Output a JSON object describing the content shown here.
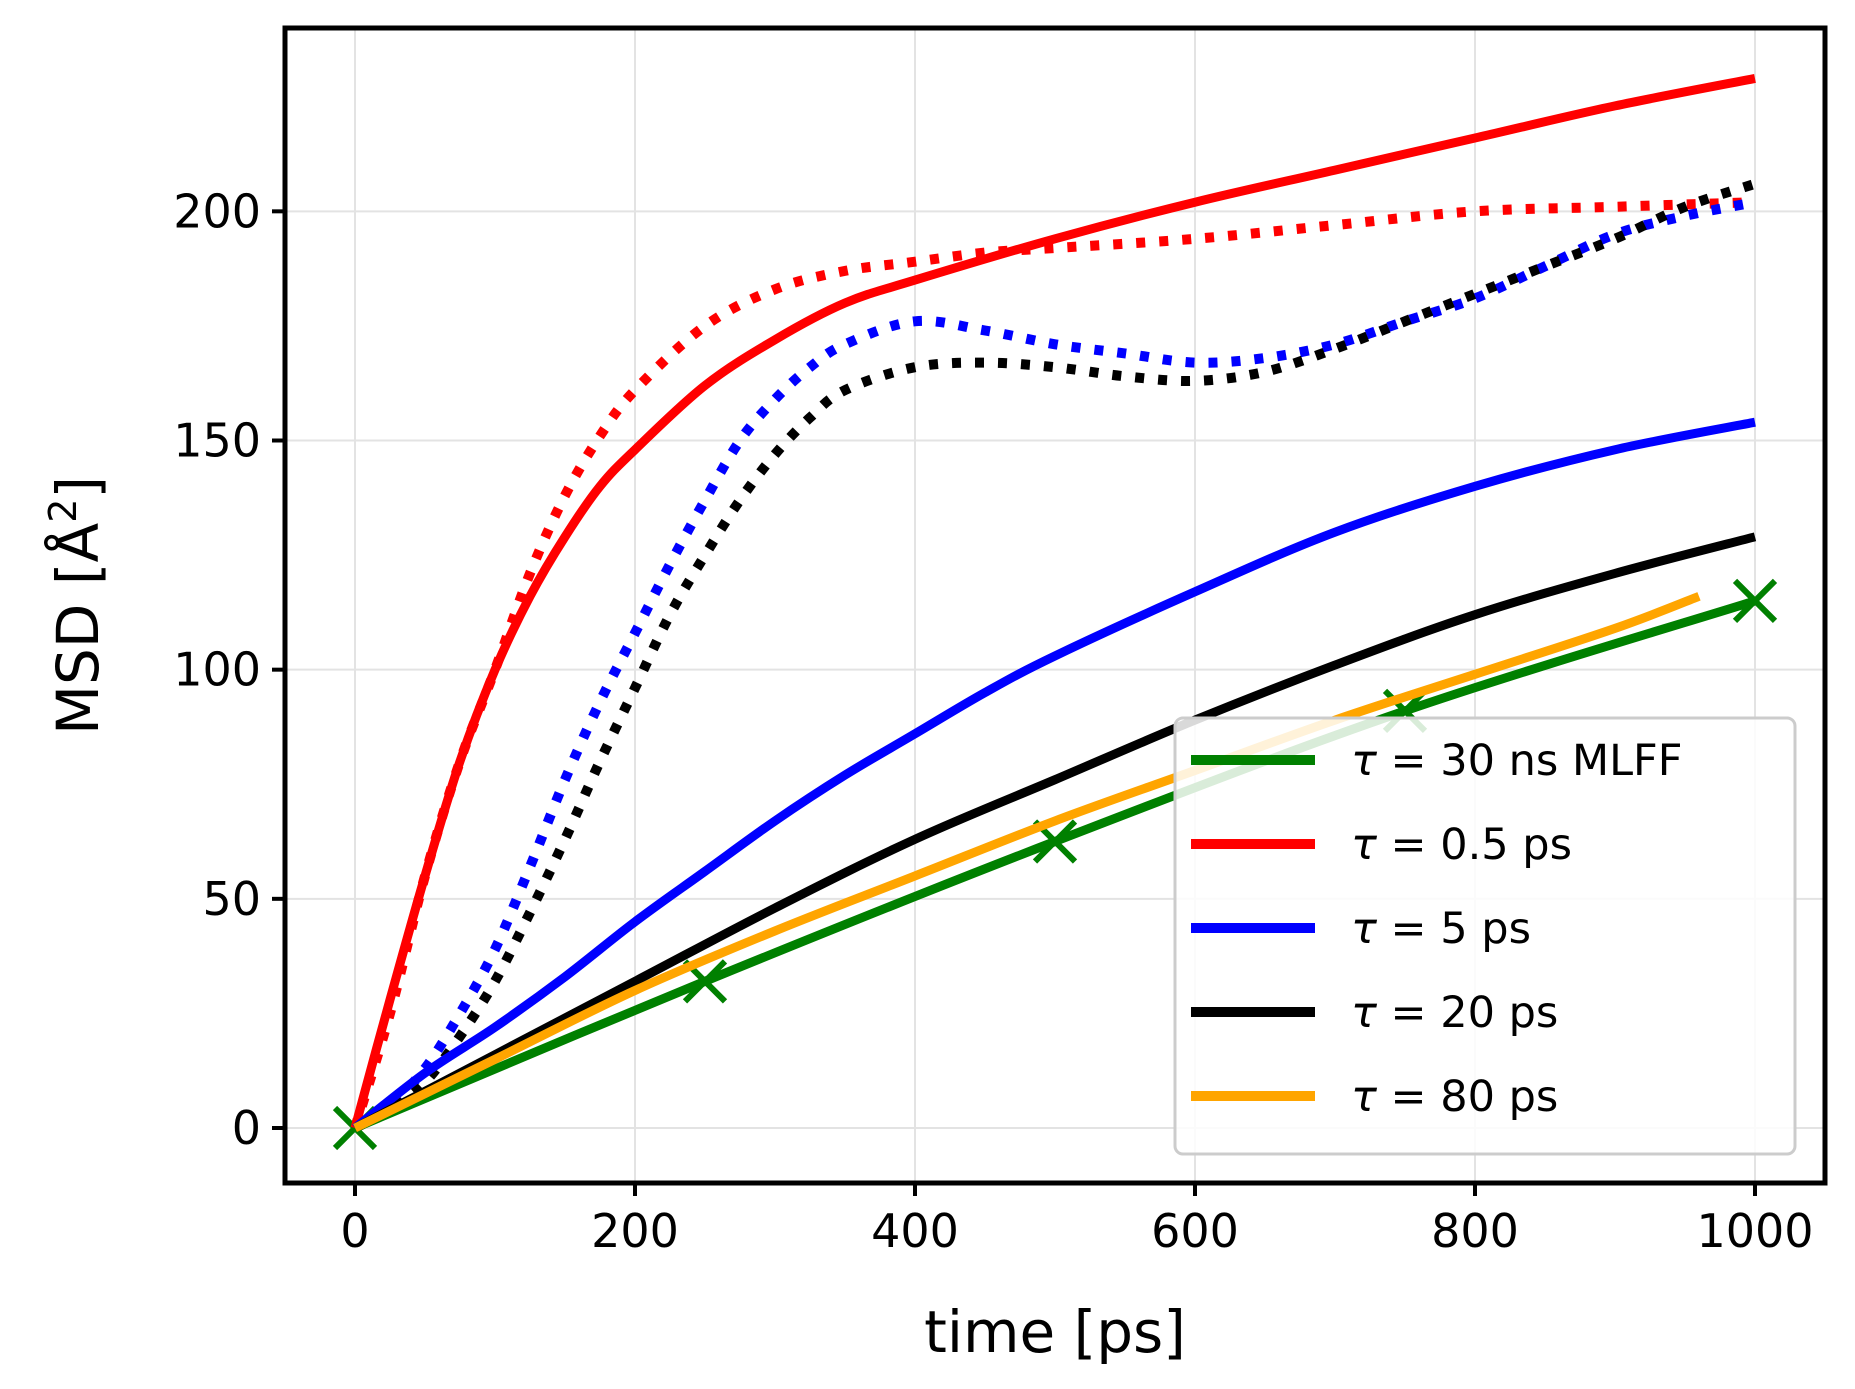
{
  "chart_data": {
    "type": "line",
    "title": "",
    "xlabel": "time [ps]",
    "ylabel_main": "MSD [Å",
    "ylabel_sup": "2",
    "ylabel_close": "]",
    "xlim": [
      -50,
      1050
    ],
    "ylim": [
      -12,
      240
    ],
    "xticks": [
      0,
      200,
      400,
      600,
      800,
      1000
    ],
    "yticks": [
      0,
      50,
      100,
      150,
      200
    ],
    "grid": true,
    "legend_position": "lower-right",
    "series": [
      {
        "name": "τ = 30 ns MLFF",
        "legend_symbol": "τ",
        "legend_rest": " = 30 ns MLFF",
        "color": "#008000",
        "style": "solid",
        "marker": "x",
        "x": [
          0,
          250,
          500,
          750,
          1000
        ],
        "y": [
          0,
          32,
          62.5,
          91,
          115
        ]
      },
      {
        "name": "τ = 0.5 ps",
        "legend_symbol": "τ",
        "legend_rest": " = 0.5 ps",
        "color": "#ff0000",
        "style": "solid",
        "x": [
          0,
          25,
          50,
          75,
          100,
          125,
          150,
          175,
          200,
          250,
          300,
          350,
          400,
          500,
          600,
          700,
          800,
          900,
          1000
        ],
        "y": [
          0,
          28,
          55,
          80,
          100,
          116,
          129,
          140,
          148,
          162,
          172,
          180,
          185,
          194,
          202,
          209,
          216,
          223,
          229
        ]
      },
      {
        "name": "τ = 5 ps",
        "legend_symbol": "τ",
        "legend_rest": " = 5 ps",
        "color": "#0000ff",
        "style": "solid",
        "x": [
          0,
          50,
          100,
          150,
          200,
          250,
          300,
          350,
          400,
          450,
          500,
          600,
          700,
          800,
          900,
          1000
        ],
        "y": [
          0,
          12,
          22,
          33,
          45,
          56,
          67,
          77,
          86,
          95,
          103,
          117,
          130,
          140,
          148,
          154
        ]
      },
      {
        "name": "τ = 20 ps",
        "legend_symbol": "τ",
        "legend_rest": " = 20 ps",
        "color": "#000000",
        "style": "solid",
        "x": [
          0,
          100,
          200,
          300,
          400,
          500,
          600,
          700,
          800,
          900,
          1000
        ],
        "y": [
          0,
          16,
          32,
          48,
          63,
          76,
          89,
          101,
          112,
          121,
          129
        ]
      },
      {
        "name": "τ = 80 ps",
        "legend_symbol": "τ",
        "legend_rest": " = 80 ps",
        "color": "#ffa500",
        "style": "solid",
        "x": [
          0,
          100,
          200,
          300,
          400,
          500,
          600,
          700,
          800,
          900,
          960
        ],
        "y": [
          0,
          15,
          30,
          43,
          55,
          67,
          78,
          89,
          99,
          109,
          116
        ]
      },
      {
        "name": "τ = 0.5 ps (dotted)",
        "color": "#ff0000",
        "style": "dotted",
        "in_legend": false,
        "x": [
          0,
          25,
          50,
          75,
          100,
          125,
          150,
          175,
          200,
          250,
          300,
          350,
          400,
          450,
          500,
          600,
          700,
          800,
          900,
          1000
        ],
        "y": [
          0,
          25,
          55,
          80,
          100,
          121,
          138,
          151,
          161,
          175,
          183,
          187,
          189,
          191,
          192,
          194,
          197,
          200,
          201,
          202
        ]
      },
      {
        "name": "τ = 5 ps (dotted)",
        "color": "#0000ff",
        "style": "dotted",
        "in_legend": false,
        "x": [
          0,
          25,
          50,
          75,
          100,
          125,
          150,
          175,
          200,
          225,
          250,
          275,
          300,
          325,
          350,
          400,
          450,
          500,
          550,
          600,
          650,
          700,
          750,
          800,
          850,
          900,
          950,
          1000
        ],
        "y": [
          0,
          5,
          13,
          25,
          39,
          57,
          76,
          93,
          108,
          123,
          137,
          150,
          159,
          166,
          171,
          176,
          174,
          171,
          169,
          167,
          168,
          171,
          176,
          181,
          188,
          195,
          199,
          202
        ]
      },
      {
        "name": "τ = 20 ps (dotted)",
        "color": "#000000",
        "style": "dotted",
        "in_legend": false,
        "x": [
          0,
          25,
          50,
          75,
          100,
          125,
          150,
          175,
          200,
          225,
          250,
          275,
          300,
          325,
          350,
          400,
          450,
          500,
          550,
          600,
          650,
          700,
          750,
          800,
          850,
          900,
          950,
          1000
        ],
        "y": [
          0,
          4,
          10,
          20,
          32,
          47,
          63,
          80,
          96,
          112,
          125,
          137,
          147,
          155,
          161,
          166,
          167,
          166,
          164,
          163,
          165,
          170,
          176,
          182,
          188,
          194,
          201,
          206
        ]
      }
    ]
  }
}
